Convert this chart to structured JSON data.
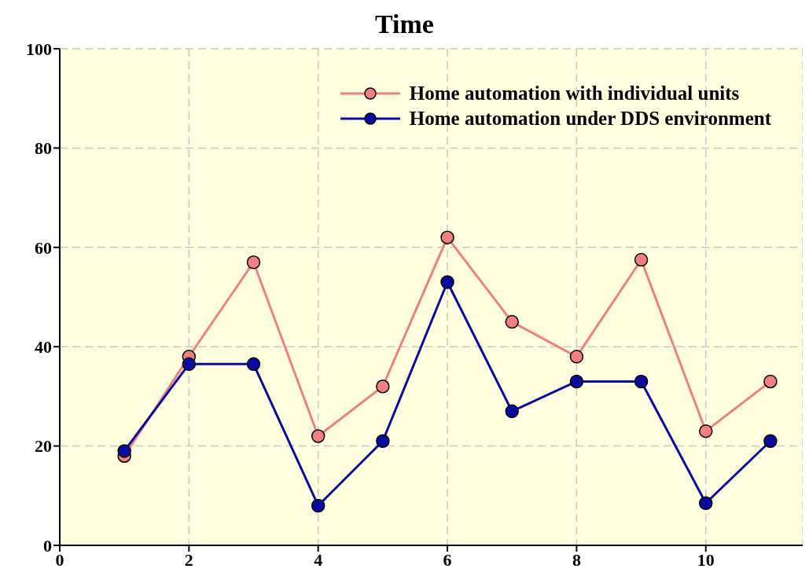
{
  "chart_data": {
    "type": "line",
    "title": "Time",
    "x": [
      1,
      2,
      3,
      4,
      5,
      6,
      7,
      8,
      9,
      10,
      11
    ],
    "series": [
      {
        "name": "Home automation with individual units",
        "color": "#f08080",
        "values": [
          18,
          38,
          57,
          22,
          32,
          62,
          45,
          38,
          57.5,
          23,
          33
        ]
      },
      {
        "name": "Home automation under DDS environment",
        "color": "#0a0aa0",
        "values": [
          19,
          36.5,
          36.5,
          8,
          21,
          53,
          27,
          33,
          33,
          8.5,
          21
        ]
      }
    ],
    "xlim": [
      0,
      11.5
    ],
    "xticks": [
      0,
      2,
      4,
      6,
      8,
      10
    ],
    "ylim": [
      0,
      100
    ],
    "yticks": [
      0,
      20,
      40,
      60,
      80,
      100
    ],
    "grid": true,
    "legend": "top right",
    "marker": "circle",
    "line_style": "solid"
  }
}
